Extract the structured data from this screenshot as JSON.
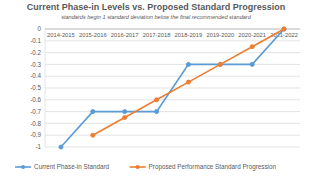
{
  "chart_data": {
    "type": "line",
    "title": "Current Phase-in Levels vs. Proposed Standard Progression",
    "subtitle": "standards begin 1 standard deviation below the final recommended standard",
    "categories": [
      "2014-2015",
      "2015-2016",
      "2016-2017",
      "2017-2018",
      "2018-2019",
      "2019-2020",
      "2020-2021",
      "2021-2022"
    ],
    "series": [
      {
        "name": "Current Phase-in Standard",
        "color": "#5b9bd5",
        "marker": "circle",
        "values": [
          -1,
          -0.7,
          -0.7,
          -0.7,
          -0.3,
          -0.3,
          -0.3,
          0
        ]
      },
      {
        "name": "Proposed Performance Standard Progression",
        "color": "#ed7d31",
        "marker": "circle",
        "values": [
          null,
          -0.9,
          -0.75,
          -0.6,
          -0.45,
          -0.3,
          -0.15,
          0
        ]
      }
    ],
    "ylim": [
      -1,
      0
    ],
    "yticks": [
      0,
      -0.1,
      -0.2,
      -0.3,
      -0.4,
      -0.5,
      -0.6,
      -0.7,
      -0.8,
      -0.9,
      -1
    ],
    "grid": true,
    "legend": "bottom"
  }
}
